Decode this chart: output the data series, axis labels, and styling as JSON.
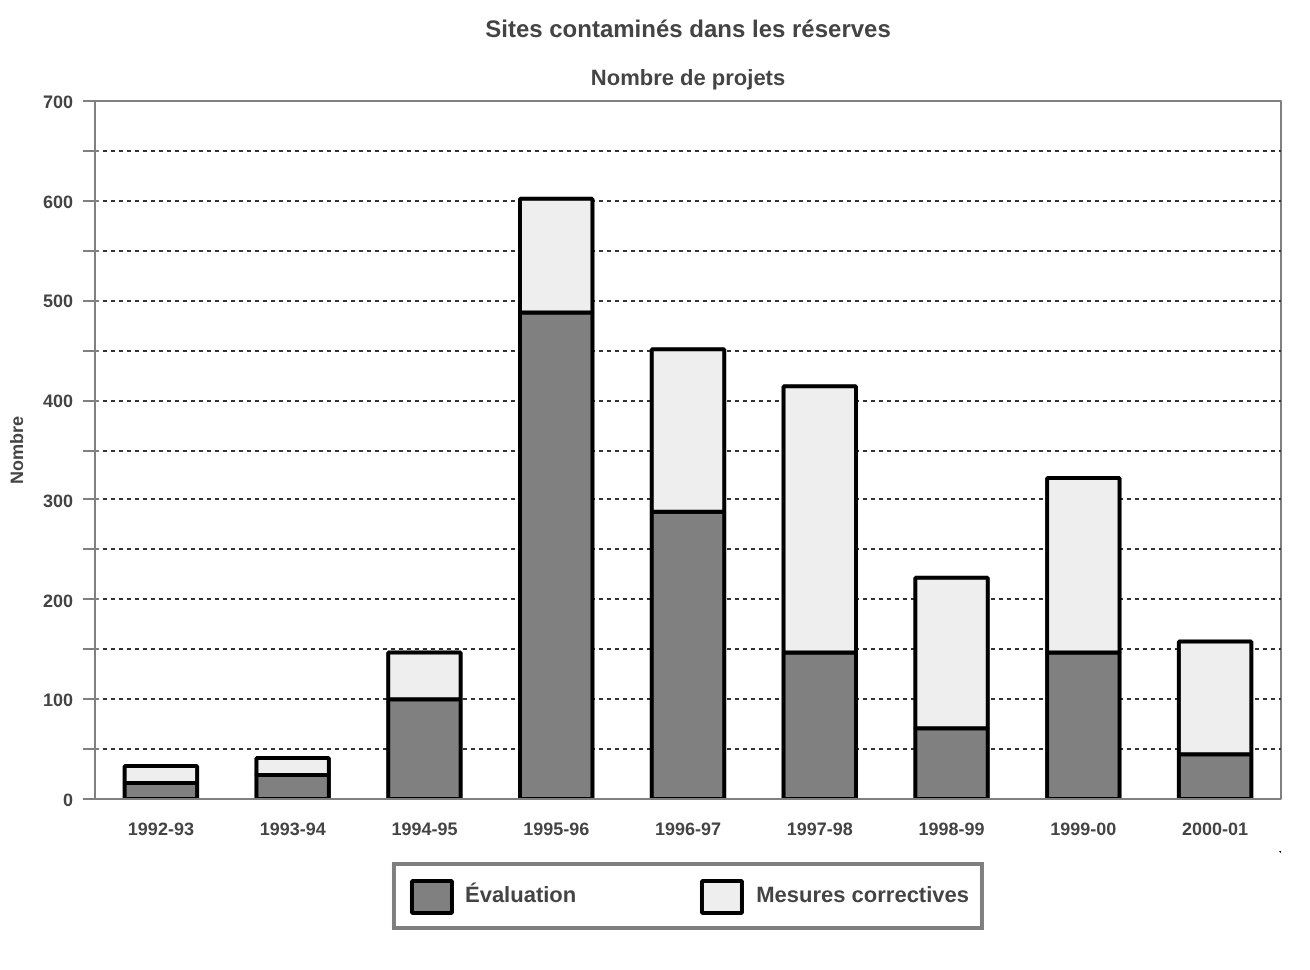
{
  "chart_data": {
    "type": "bar",
    "title": "Sites contaminés dans les réserves",
    "subtitle": "Nombre de projets",
    "ylabel": "Nombre",
    "stacked": true,
    "categories": [
      "1992-93",
      "1993-94",
      "1994-95",
      "1995-96",
      "1996-97",
      "1997-98",
      "1998-99",
      "1999-00",
      "2000-01"
    ],
    "series": [
      {
        "name": "Évaluation",
        "color": "#808080",
        "values": [
          16,
          24,
          100,
          488,
          288,
          147,
          71,
          147,
          45
        ]
      },
      {
        "name": "Mesures correctives",
        "color": "#eeeeee",
        "values": [
          17,
          17,
          47,
          114,
          163,
          267,
          151,
          175,
          113
        ]
      }
    ],
    "ylim": [
      0,
      700
    ],
    "yticks": [
      0,
      {
        "value": 50,
        "label": null
      },
      100,
      {
        "value": 150,
        "label": null
      },
      200,
      {
        "value": 250,
        "label": null
      },
      300,
      {
        "value": 350,
        "label": null
      },
      400,
      {
        "value": 450,
        "label": null
      },
      500,
      {
        "value": 550,
        "label": null
      },
      600,
      {
        "value": 650,
        "label": null
      },
      700
    ],
    "grid": "y",
    "legend": "bottom"
  }
}
